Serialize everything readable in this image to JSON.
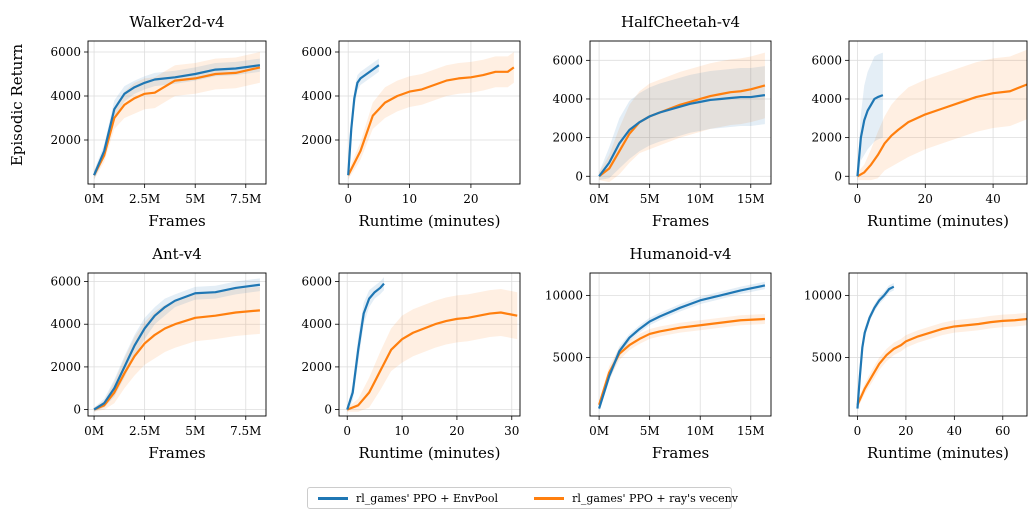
{
  "figure": {
    "ylabel": "Episodic Return",
    "colors": {
      "envpool": "#1f77b4",
      "ray": "#ff7f0e"
    }
  },
  "legend": {
    "envpool_label": "rl_games' PPO + EnvPool",
    "ray_label": "rl_games' PPO + ray's vecenv",
    "placement": "bottom-center"
  },
  "chart_data": [
    {
      "type": "line",
      "title": "Walker2d-v4",
      "xlabel": "Frames",
      "ylabel": "Episodic Return",
      "xlim": [
        -0.3,
        8.5
      ],
      "ylim": [
        0,
        6500
      ],
      "xticks": [
        0,
        2.5,
        5,
        7.5
      ],
      "xtick_labels": [
        "0M",
        "2.5M",
        "5M",
        "7.5M"
      ],
      "yticks": [
        2000,
        4000,
        6000
      ],
      "ytick_labels": [
        "2000",
        "4000",
        "6000"
      ],
      "grid": true,
      "series": [
        {
          "name": "rl_games' PPO + EnvPool",
          "color": "#1f77b4",
          "x": [
            0,
            0.5,
            1,
            1.5,
            2,
            2.5,
            3,
            4,
            5,
            6,
            7,
            8.2
          ],
          "y": [
            400,
            1500,
            3400,
            4100,
            4400,
            4600,
            4750,
            4850,
            5000,
            5200,
            5250,
            5400
          ],
          "band": [
            200,
            300,
            400,
            350,
            300,
            300,
            300,
            300,
            300,
            300,
            300,
            300
          ]
        },
        {
          "name": "rl_games' PPO + ray's vecenv",
          "color": "#ff7f0e",
          "x": [
            0,
            0.5,
            1,
            1.5,
            2,
            2.5,
            3,
            4,
            5,
            6,
            7,
            8.2
          ],
          "y": [
            400,
            1300,
            3000,
            3600,
            3900,
            4100,
            4150,
            4700,
            4800,
            5000,
            5050,
            5300
          ],
          "band": [
            200,
            300,
            500,
            600,
            700,
            700,
            700,
            700,
            700,
            700,
            700,
            700
          ]
        }
      ]
    },
    {
      "type": "line",
      "title": "",
      "xlabel": "Runtime (minutes)",
      "ylabel": "",
      "xlim": [
        -1.5,
        28
      ],
      "ylim": [
        0,
        6500
      ],
      "xticks": [
        0,
        10,
        20
      ],
      "xtick_labels": [
        "0",
        "10",
        "20"
      ],
      "yticks": [
        2000,
        4000,
        6000
      ],
      "ytick_labels": [
        "2000",
        "4000",
        "6000"
      ],
      "grid": true,
      "series": [
        {
          "name": "rl_games' PPO + EnvPool",
          "color": "#1f77b4",
          "x": [
            0,
            0.5,
            1,
            1.5,
            2,
            3,
            4,
            5
          ],
          "y": [
            400,
            2500,
            3900,
            4600,
            4800,
            5000,
            5200,
            5400
          ],
          "band": [
            200,
            400,
            400,
            350,
            300,
            300,
            300,
            300
          ]
        },
        {
          "name": "rl_games' PPO + ray's vecenv",
          "color": "#ff7f0e",
          "x": [
            0,
            2,
            4,
            6,
            8,
            10,
            12,
            14,
            16,
            18,
            20,
            22,
            24,
            26,
            27
          ],
          "y": [
            400,
            1500,
            3100,
            3700,
            4000,
            4200,
            4300,
            4500,
            4700,
            4800,
            4850,
            4950,
            5100,
            5100,
            5300
          ],
          "band": [
            200,
            400,
            600,
            700,
            700,
            700,
            700,
            700,
            700,
            700,
            700,
            700,
            700,
            700,
            700
          ]
        }
      ]
    },
    {
      "type": "line",
      "title": "HalfCheetah-v4",
      "xlabel": "Frames",
      "ylabel": "",
      "xlim": [
        -0.9,
        17
      ],
      "ylim": [
        -400,
        7000
      ],
      "xticks": [
        0,
        5,
        10,
        15
      ],
      "xtick_labels": [
        "0M",
        "5M",
        "10M",
        "15M"
      ],
      "yticks": [
        0,
        2000,
        4000,
        6000
      ],
      "ytick_labels": [
        "0",
        "2000",
        "4000",
        "6000"
      ],
      "grid": true,
      "series": [
        {
          "name": "rl_games' PPO + EnvPool",
          "color": "#1f77b4",
          "x": [
            0,
            1,
            2,
            3,
            4,
            5,
            6,
            7,
            8,
            9,
            10,
            11,
            12,
            13,
            14,
            15,
            16.4
          ],
          "y": [
            0,
            700,
            1700,
            2400,
            2800,
            3100,
            3300,
            3450,
            3600,
            3750,
            3850,
            3950,
            4000,
            4050,
            4100,
            4100,
            4200
          ],
          "band": [
            200,
            800,
            1300,
            1500,
            1500,
            1500,
            1500,
            1500,
            1500,
            1500,
            1500,
            1500,
            1500,
            1500,
            1500,
            1500,
            1500
          ]
        },
        {
          "name": "rl_games' PPO + ray's vecenv",
          "color": "#ff7f0e",
          "x": [
            0,
            1,
            2,
            3,
            4,
            5,
            6,
            7,
            8,
            9,
            10,
            11,
            12,
            13,
            14,
            15,
            16.4
          ],
          "y": [
            0,
            400,
            1300,
            2200,
            2800,
            3100,
            3300,
            3500,
            3700,
            3850,
            4000,
            4150,
            4250,
            4350,
            4400,
            4500,
            4700
          ],
          "band": [
            200,
            700,
            1200,
            1500,
            1600,
            1700,
            1700,
            1700,
            1700,
            1700,
            1700,
            1700,
            1700,
            1700,
            1700,
            1700,
            1700
          ]
        }
      ]
    },
    {
      "type": "line",
      "title": "",
      "xlabel": "Runtime (minutes)",
      "ylabel": "",
      "xlim": [
        -2.5,
        50
      ],
      "ylim": [
        -400,
        7000
      ],
      "xticks": [
        0,
        20,
        40
      ],
      "xtick_labels": [
        "0",
        "20",
        "40"
      ],
      "yticks": [
        0,
        2000,
        4000,
        6000
      ],
      "ytick_labels": [
        "0",
        "2000",
        "4000",
        "6000"
      ],
      "grid": true,
      "series": [
        {
          "name": "rl_games' PPO + EnvPool",
          "color": "#1f77b4",
          "x": [
            0,
            1,
            2,
            3,
            4,
            5,
            6,
            7.5
          ],
          "y": [
            0,
            2000,
            2900,
            3400,
            3700,
            4000,
            4100,
            4200
          ],
          "band": [
            300,
            1200,
            1800,
            2000,
            2100,
            2200,
            2200,
            2200
          ]
        },
        {
          "name": "rl_games' PPO + ray's vecenv",
          "color": "#ff7f0e",
          "x": [
            0,
            2,
            4,
            6,
            8,
            10,
            12,
            15,
            20,
            25,
            30,
            35,
            40,
            45,
            50
          ],
          "y": [
            0,
            200,
            600,
            1100,
            1700,
            2100,
            2400,
            2800,
            3200,
            3500,
            3800,
            4100,
            4300,
            4400,
            4750
          ],
          "band": [
            200,
            400,
            800,
            1200,
            1400,
            1600,
            1700,
            1800,
            1800,
            1800,
            1800,
            1800,
            1800,
            1800,
            1800
          ]
        }
      ]
    },
    {
      "type": "line",
      "title": "Ant-v4",
      "xlabel": "Frames",
      "ylabel": "",
      "xlim": [
        -0.3,
        8.5
      ],
      "ylim": [
        -300,
        6400
      ],
      "xticks": [
        0,
        2.5,
        5,
        7.5
      ],
      "xtick_labels": [
        "0M",
        "2.5M",
        "5M",
        "7.5M"
      ],
      "yticks": [
        0,
        2000,
        4000,
        6000
      ],
      "ytick_labels": [
        "0",
        "2000",
        "4000",
        "6000"
      ],
      "grid": true,
      "series": [
        {
          "name": "rl_games' PPO + EnvPool",
          "color": "#1f77b4",
          "x": [
            0,
            0.5,
            1,
            1.5,
            2,
            2.5,
            3,
            3.5,
            4,
            5,
            6,
            7,
            8.2
          ],
          "y": [
            0,
            300,
            1000,
            2000,
            3000,
            3800,
            4400,
            4800,
            5100,
            5450,
            5500,
            5700,
            5850
          ],
          "band": [
            100,
            200,
            400,
            500,
            500,
            500,
            400,
            400,
            300,
            300,
            300,
            300,
            300
          ]
        },
        {
          "name": "rl_games' PPO + ray's vecenv",
          "color": "#ff7f0e",
          "x": [
            0,
            0.5,
            1,
            1.5,
            2,
            2.5,
            3,
            3.5,
            4,
            5,
            6,
            7,
            8.2
          ],
          "y": [
            0,
            200,
            800,
            1700,
            2500,
            3100,
            3500,
            3800,
            4000,
            4300,
            4400,
            4550,
            4650
          ],
          "band": [
            100,
            200,
            500,
            700,
            900,
            1000,
            1100,
            1100,
            1100,
            1100,
            1100,
            1100,
            1100
          ]
        }
      ]
    },
    {
      "type": "line",
      "title": "",
      "xlabel": "Runtime (minutes)",
      "ylabel": "",
      "xlim": [
        -1.5,
        31.5
      ],
      "ylim": [
        -300,
        6400
      ],
      "xticks": [
        0,
        10,
        20,
        30
      ],
      "xtick_labels": [
        "0",
        "10",
        "20",
        "30"
      ],
      "yticks": [
        0,
        2000,
        4000,
        6000
      ],
      "ytick_labels": [
        "0",
        "2000",
        "4000",
        "6000"
      ],
      "grid": true,
      "series": [
        {
          "name": "rl_games' PPO + EnvPool",
          "color": "#1f77b4",
          "x": [
            0,
            1,
            2,
            3,
            4,
            5,
            6,
            6.7
          ],
          "y": [
            0,
            800,
            2800,
            4500,
            5200,
            5500,
            5700,
            5900
          ],
          "band": [
            100,
            400,
            600,
            500,
            400,
            300,
            300,
            300
          ]
        },
        {
          "name": "rl_games' PPO + ray's vecenv",
          "color": "#ff7f0e",
          "x": [
            0,
            2,
            4,
            6,
            8,
            10,
            12,
            14,
            16,
            18,
            20,
            22,
            24,
            26,
            28,
            30,
            31
          ],
          "y": [
            0,
            200,
            800,
            1800,
            2800,
            3300,
            3600,
            3800,
            4000,
            4150,
            4250,
            4300,
            4400,
            4500,
            4550,
            4450,
            4400
          ],
          "band": [
            100,
            300,
            700,
            900,
            1000,
            1100,
            1100,
            1100,
            1100,
            1100,
            1100,
            1100,
            1100,
            1100,
            1100,
            1100,
            1100
          ]
        }
      ]
    },
    {
      "type": "line",
      "title": "Humanoid-v4",
      "xlabel": "Frames",
      "ylabel": "",
      "xlim": [
        -0.9,
        17
      ],
      "ylim": [
        300,
        11800
      ],
      "xticks": [
        0,
        5,
        10,
        15
      ],
      "xtick_labels": [
        "0M",
        "5M",
        "10M",
        "15M"
      ],
      "yticks": [
        5000,
        10000
      ],
      "ytick_labels": [
        "5000",
        "10000"
      ],
      "grid": true,
      "series": [
        {
          "name": "rl_games' PPO + EnvPool",
          "color": "#1f77b4",
          "x": [
            0,
            1,
            2,
            3,
            4,
            5,
            6,
            8,
            10,
            12,
            14,
            16.4
          ],
          "y": [
            900,
            3500,
            5500,
            6600,
            7300,
            7900,
            8300,
            9000,
            9600,
            10000,
            10400,
            10800
          ],
          "band": [
            200,
            400,
            400,
            300,
            300,
            300,
            300,
            300,
            300,
            300,
            300,
            300
          ]
        },
        {
          "name": "rl_games' PPO + ray's vecenv",
          "color": "#ff7f0e",
          "x": [
            0,
            1,
            2,
            3,
            4,
            5,
            6,
            8,
            10,
            12,
            14,
            16.4
          ],
          "y": [
            1200,
            3800,
            5300,
            6000,
            6500,
            6900,
            7100,
            7400,
            7600,
            7800,
            8000,
            8100
          ],
          "band": [
            300,
            500,
            500,
            400,
            400,
            400,
            400,
            400,
            400,
            400,
            400,
            400
          ]
        }
      ]
    },
    {
      "type": "line",
      "title": "",
      "xlabel": "Runtime (minutes)",
      "ylabel": "",
      "xlim": [
        -3.5,
        70
      ],
      "ylim": [
        300,
        11800
      ],
      "xticks": [
        0,
        20,
        40,
        60
      ],
      "xtick_labels": [
        "0",
        "20",
        "40",
        "60"
      ],
      "yticks": [
        5000,
        10000
      ],
      "ytick_labels": [
        "5000",
        "10000"
      ],
      "grid": true,
      "series": [
        {
          "name": "rl_games' PPO + EnvPool",
          "color": "#1f77b4",
          "x": [
            0,
            1,
            2,
            3,
            5,
            7,
            9,
            11,
            13,
            15
          ],
          "y": [
            900,
            3500,
            5800,
            7000,
            8200,
            9000,
            9600,
            10000,
            10500,
            10700
          ],
          "band": [
            200,
            400,
            500,
            400,
            300,
            300,
            300,
            300,
            300,
            300
          ]
        },
        {
          "name": "rl_games' PPO + ray's vecenv",
          "color": "#ff7f0e",
          "x": [
            0,
            3,
            6,
            9,
            12,
            15,
            18,
            20,
            25,
            30,
            35,
            40,
            45,
            50,
            55,
            60,
            65,
            70
          ],
          "y": [
            1200,
            2500,
            3500,
            4500,
            5200,
            5700,
            6000,
            6300,
            6700,
            7000,
            7300,
            7500,
            7600,
            7700,
            7850,
            7950,
            8000,
            8100
          ],
          "band": [
            300,
            400,
            500,
            500,
            500,
            500,
            500,
            500,
            500,
            500,
            500,
            500,
            500,
            500,
            500,
            500,
            500,
            500
          ]
        }
      ]
    }
  ]
}
